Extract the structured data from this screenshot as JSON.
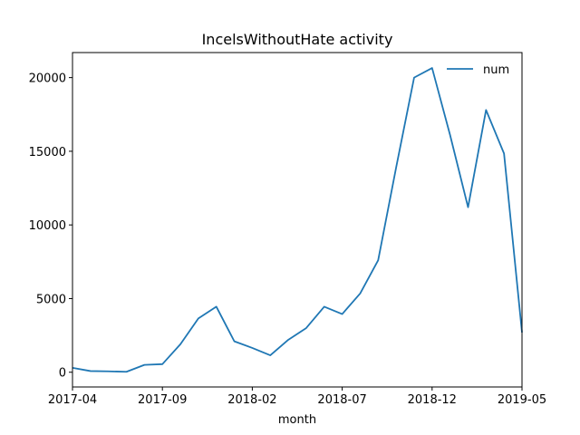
{
  "chart_data": {
    "type": "line",
    "title": "IncelsWithoutHate activity",
    "xlabel": "month",
    "ylabel": "",
    "x": [
      "2017-04",
      "2017-05",
      "2017-06",
      "2017-07",
      "2017-08",
      "2017-09",
      "2017-10",
      "2017-11",
      "2017-12",
      "2018-01",
      "2018-02",
      "2018-03",
      "2018-04",
      "2018-05",
      "2018-06",
      "2018-07",
      "2018-08",
      "2018-09",
      "2018-10",
      "2018-11",
      "2018-12",
      "2019-01",
      "2019-02",
      "2019-03",
      "2019-04",
      "2019-05"
    ],
    "series": [
      {
        "name": "num",
        "color": "#1f77b4",
        "values": [
          300,
          80,
          60,
          30,
          500,
          550,
          1900,
          3650,
          4450,
          2100,
          1650,
          1150,
          2200,
          3000,
          4450,
          3950,
          5350,
          7600,
          13900,
          20000,
          20650,
          16100,
          11200,
          17800,
          14850,
          2700
        ]
      }
    ],
    "xticks": [
      "2017-04",
      "2017-09",
      "2018-02",
      "2018-07",
      "2018-12",
      "2019-05"
    ],
    "yticks": [
      "0",
      "5000",
      "10000",
      "15000",
      "20000"
    ],
    "ylim": [
      -1000,
      21700
    ],
    "grid": false,
    "legend": "top-right"
  }
}
